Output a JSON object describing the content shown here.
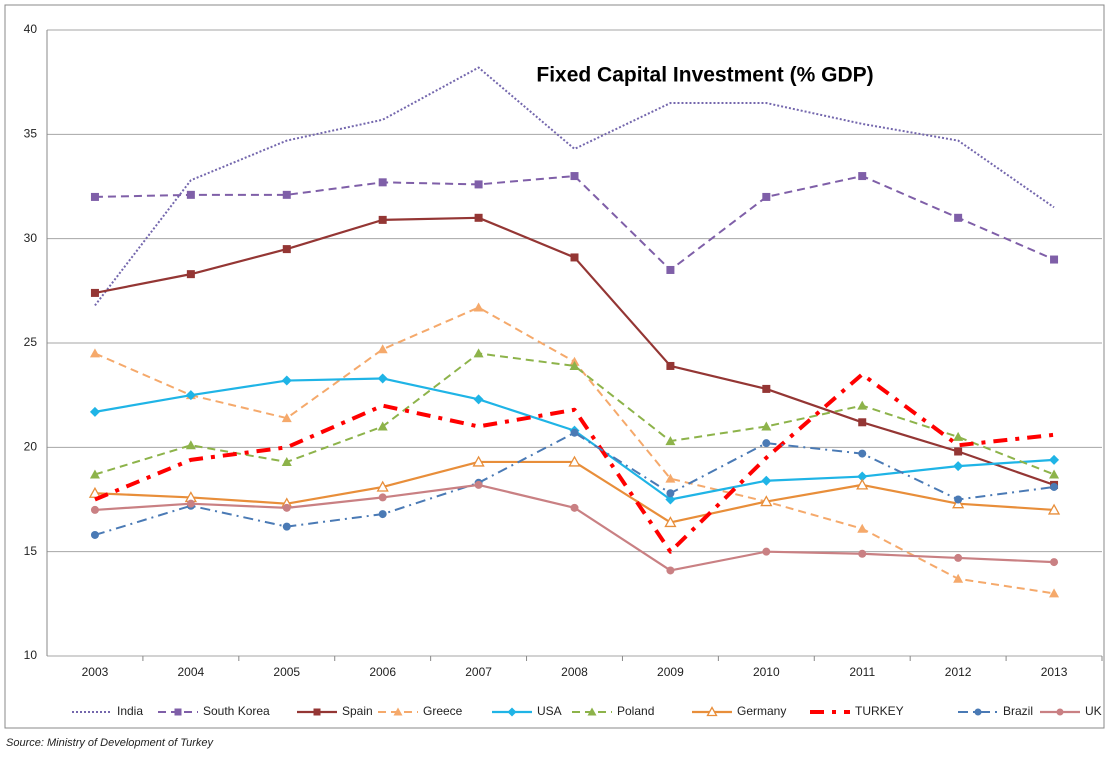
{
  "chart_data": {
    "type": "line",
    "title": "Fixed Capital Investment (% GDP)",
    "source": "Source: Ministry of Development of Turkey",
    "categories": [
      "2003",
      "2004",
      "2005",
      "2006",
      "2007",
      "2008",
      "2009",
      "2010",
      "2011",
      "2012",
      "2013"
    ],
    "ylim": [
      10,
      40
    ],
    "yticks": [
      10,
      15,
      20,
      25,
      30,
      35,
      40
    ],
    "grid": true,
    "legend": "bottom",
    "series": [
      {
        "name": "India",
        "color": "#7467ad",
        "dash": "dotted",
        "marker": "none",
        "values": [
          26.8,
          32.8,
          34.7,
          35.7,
          38.2,
          34.3,
          36.5,
          36.5,
          35.5,
          34.7,
          31.5
        ]
      },
      {
        "name": "South Korea",
        "color": "#7f5fa8",
        "dash": "dashed",
        "marker": "square",
        "values": [
          32.0,
          32.1,
          32.1,
          32.7,
          32.6,
          33.0,
          28.5,
          32.0,
          33.0,
          31.0,
          29.0
        ]
      },
      {
        "name": "Spain",
        "color": "#943634",
        "dash": "solid",
        "marker": "square",
        "values": [
          27.4,
          28.3,
          29.5,
          30.9,
          31.0,
          29.1,
          23.9,
          22.8,
          21.2,
          19.8,
          18.2
        ]
      },
      {
        "name": "Greece",
        "color": "#f5a96b",
        "dash": "dashed",
        "marker": "triangle",
        "values": [
          24.5,
          22.5,
          21.4,
          24.7,
          26.7,
          24.1,
          18.5,
          17.4,
          16.1,
          13.7,
          13.0
        ]
      },
      {
        "name": "USA",
        "color": "#1fb4e6",
        "dash": "solid",
        "marker": "diamond",
        "values": [
          21.7,
          22.5,
          23.2,
          23.3,
          22.3,
          20.8,
          17.5,
          18.4,
          18.6,
          19.1,
          19.4
        ]
      },
      {
        "name": "Poland",
        "color": "#8db34a",
        "dash": "dashed",
        "marker": "triangle",
        "values": [
          18.7,
          20.1,
          19.3,
          21.0,
          24.5,
          23.9,
          20.3,
          21.0,
          22.0,
          20.5,
          18.7
        ]
      },
      {
        "name": "Germany",
        "color": "#e88e3a",
        "dash": "solid",
        "marker": "open-triangle",
        "values": [
          17.8,
          17.6,
          17.3,
          18.1,
          19.3,
          19.3,
          16.4,
          17.4,
          18.2,
          17.3,
          17.0
        ]
      },
      {
        "name": "TURKEY",
        "color": "#ff0000",
        "dash": "dash-dot-bold",
        "marker": "none",
        "values": [
          17.5,
          19.4,
          20.0,
          22.0,
          21.0,
          21.8,
          15.0,
          19.5,
          23.5,
          20.1,
          20.6
        ]
      },
      {
        "name": "Brazil",
        "color": "#4a7ab5",
        "dash": "dash-dot",
        "marker": "circle",
        "values": [
          15.8,
          17.2,
          16.2,
          16.8,
          18.3,
          20.7,
          17.8,
          20.2,
          19.7,
          17.5,
          18.1
        ]
      },
      {
        "name": "UK",
        "color": "#c98083",
        "dash": "solid",
        "marker": "circle",
        "values": [
          17.0,
          17.3,
          17.1,
          17.6,
          18.2,
          17.1,
          14.1,
          15.0,
          14.9,
          14.7,
          14.5
        ]
      }
    ]
  }
}
